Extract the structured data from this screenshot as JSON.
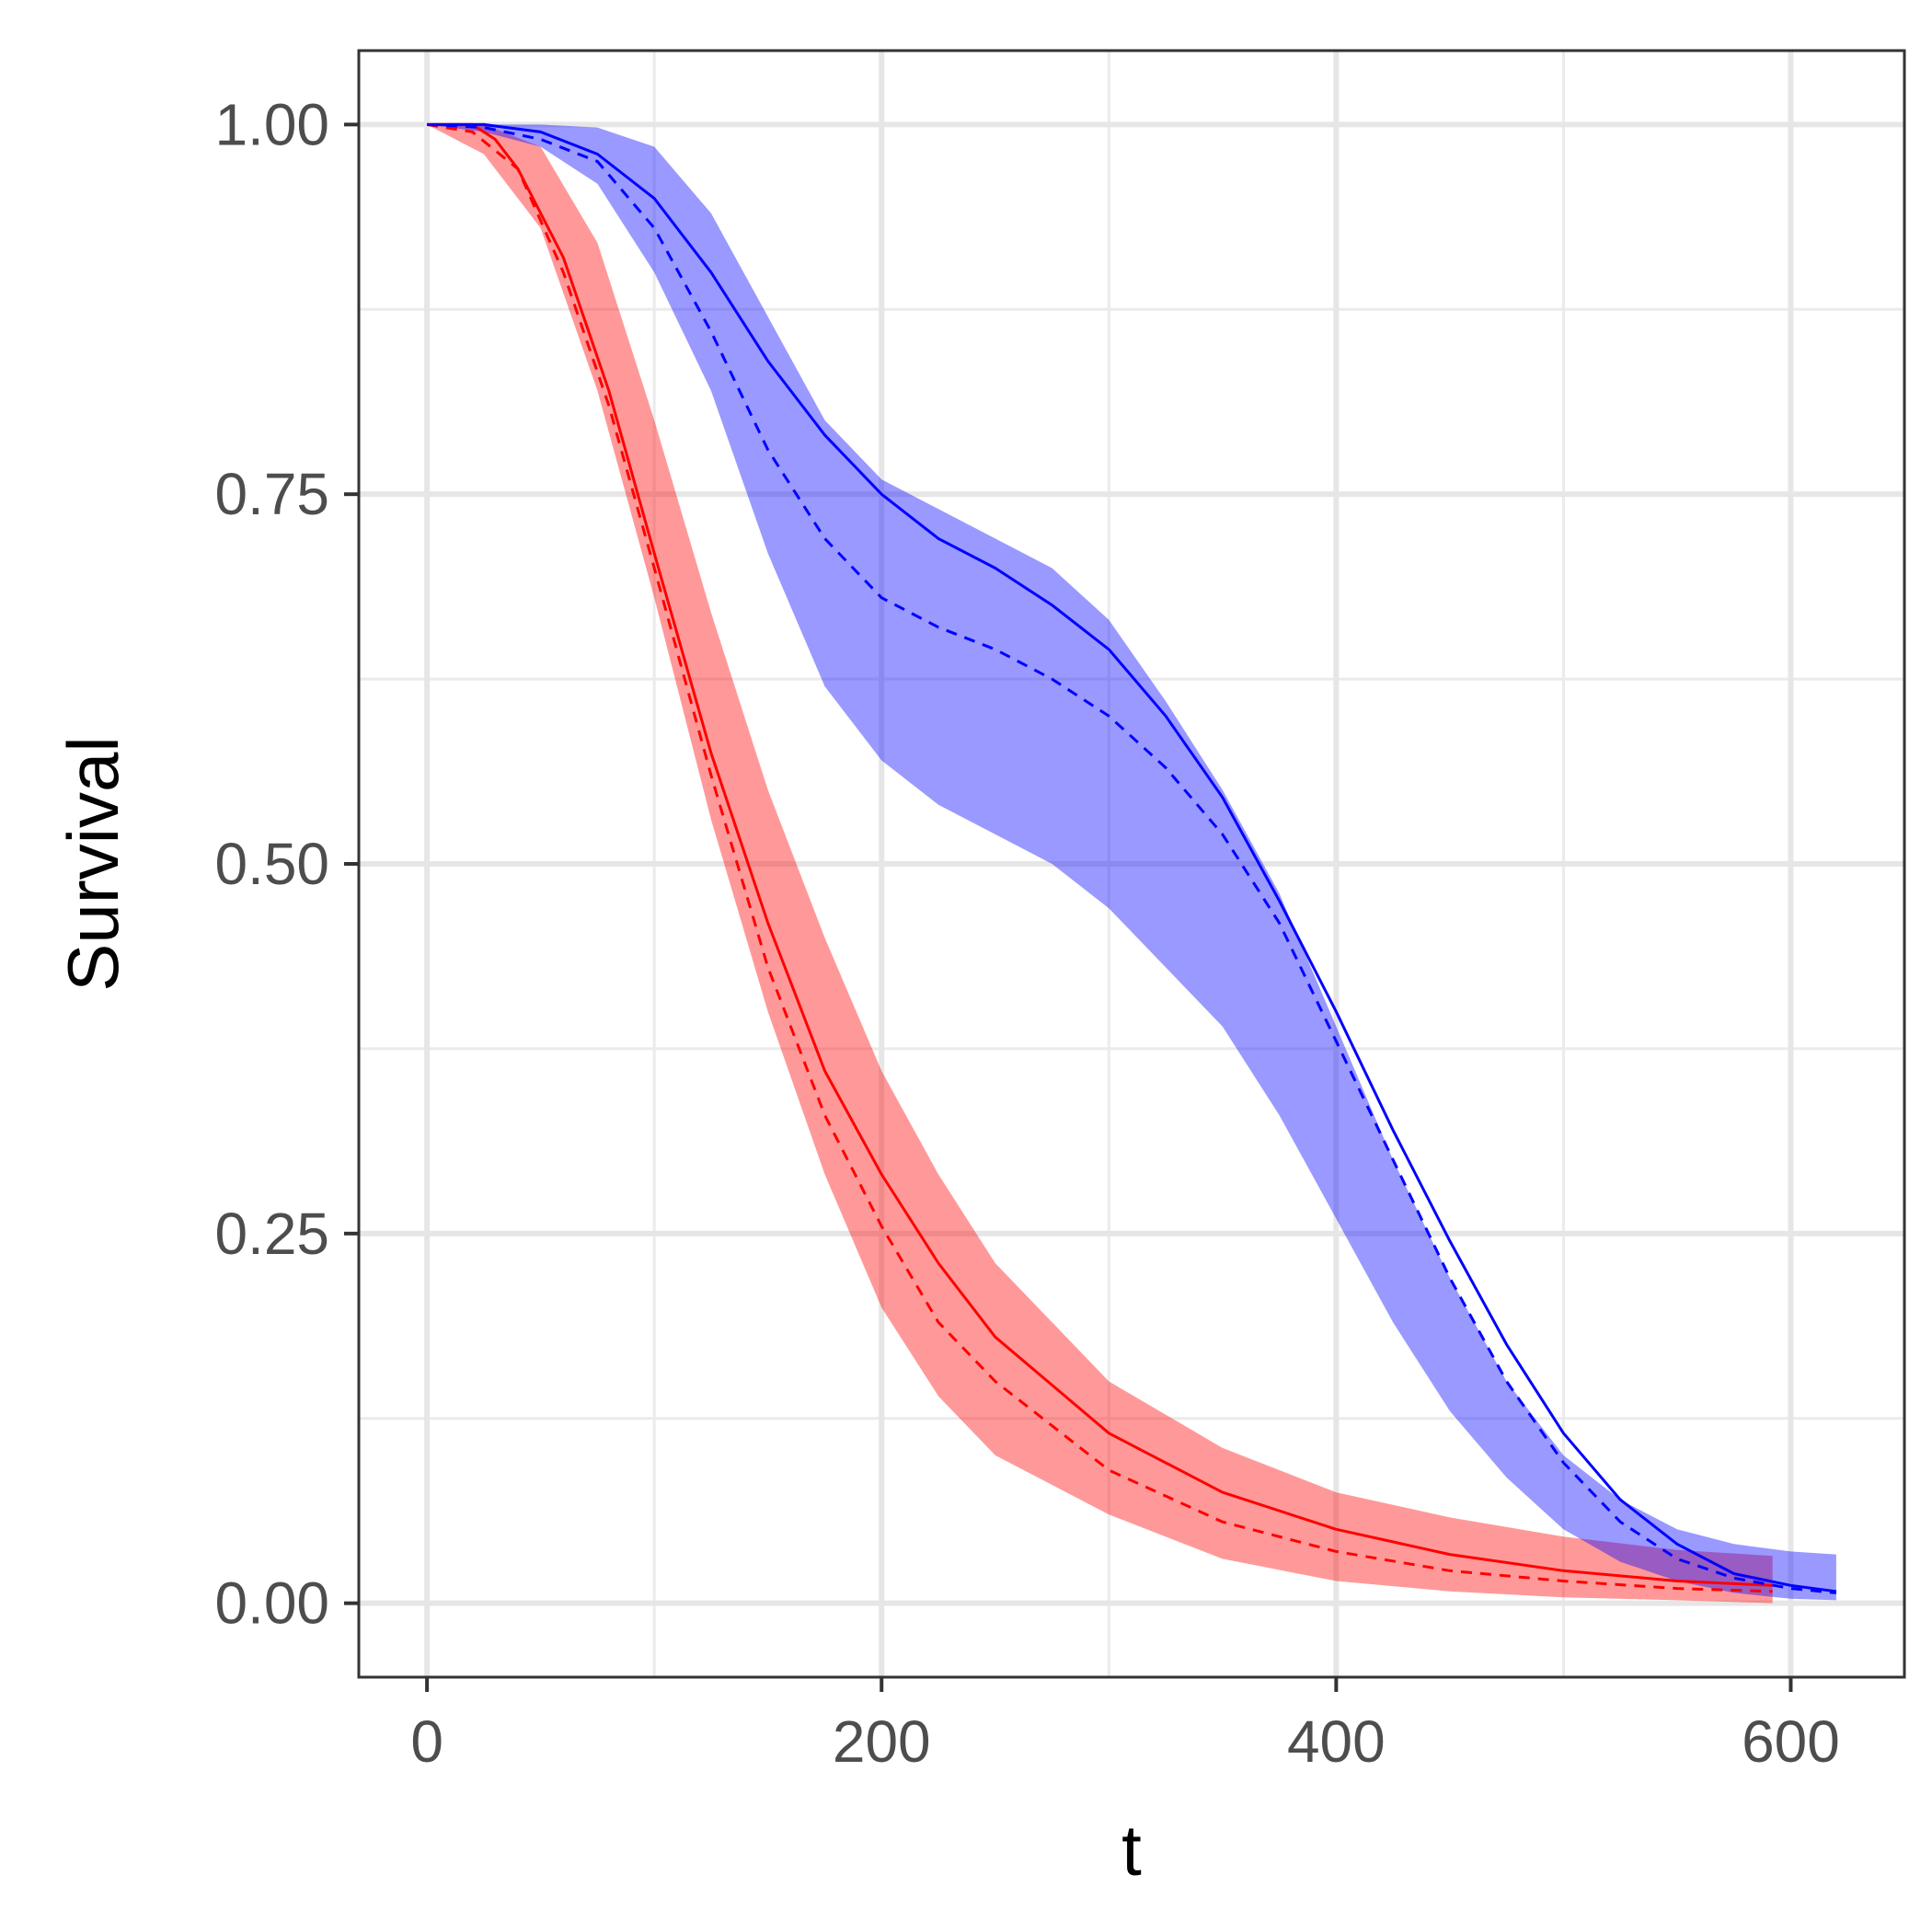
{
  "chart_data": {
    "type": "line",
    "title": "",
    "xlabel": "t",
    "ylabel": "Survival",
    "xlim": [
      -30,
      650
    ],
    "ylim": [
      -0.05,
      1.05
    ],
    "x_ticks": [
      0,
      200,
      400,
      600
    ],
    "x_tick_labels": [
      "0",
      "200",
      "400",
      "600"
    ],
    "y_ticks": [
      0,
      0.25,
      0.5,
      0.75,
      1.0
    ],
    "y_tick_labels": [
      "0.00",
      "0.25",
      "0.50",
      "0.75",
      "1.00"
    ],
    "grid": true,
    "legend": "none",
    "series": [
      {
        "color": "#ff0000",
        "linestyle": "solid",
        "x": [
          0,
          20,
          30,
          40,
          60,
          80,
          100,
          125,
          150,
          175,
          200,
          225,
          250,
          300,
          350,
          400,
          450,
          500,
          550,
          592
        ],
        "y": [
          1.0,
          1.0,
          0.99,
          0.97,
          0.91,
          0.82,
          0.71,
          0.575,
          0.46,
          0.36,
          0.29,
          0.23,
          0.18,
          0.115,
          0.075,
          0.05,
          0.033,
          0.022,
          0.015,
          0.012
        ]
      },
      {
        "color": "#ff0000",
        "linestyle": "dashed",
        "x": [
          0,
          20,
          40,
          60,
          80,
          100,
          125,
          150,
          175,
          200,
          225,
          250,
          300,
          350,
          400,
          450,
          500,
          550,
          592
        ],
        "y": [
          1.0,
          0.995,
          0.97,
          0.9,
          0.81,
          0.7,
          0.56,
          0.43,
          0.33,
          0.255,
          0.19,
          0.15,
          0.09,
          0.055,
          0.035,
          0.022,
          0.015,
          0.01,
          0.008
        ]
      },
      {
        "color": "#0000ff",
        "linestyle": "solid",
        "x": [
          0,
          25,
          50,
          75,
          100,
          125,
          150,
          175,
          200,
          225,
          250,
          275,
          300,
          325,
          350,
          375,
          400,
          425,
          450,
          475,
          500,
          525,
          550,
          575,
          600,
          620
        ],
        "y": [
          1.0,
          1.0,
          0.995,
          0.98,
          0.95,
          0.9,
          0.84,
          0.79,
          0.75,
          0.72,
          0.7,
          0.675,
          0.645,
          0.6,
          0.545,
          0.475,
          0.4,
          0.32,
          0.245,
          0.175,
          0.115,
          0.07,
          0.04,
          0.02,
          0.012,
          0.008
        ]
      },
      {
        "color": "#0000ff",
        "linestyle": "dashed",
        "x": [
          0,
          25,
          50,
          75,
          100,
          125,
          150,
          175,
          200,
          225,
          250,
          275,
          300,
          325,
          350,
          375,
          400,
          425,
          450,
          475,
          500,
          525,
          550,
          575,
          600,
          620
        ],
        "y": [
          1.0,
          0.998,
          0.99,
          0.975,
          0.93,
          0.86,
          0.78,
          0.72,
          0.68,
          0.66,
          0.645,
          0.625,
          0.6,
          0.565,
          0.52,
          0.46,
          0.38,
          0.3,
          0.22,
          0.15,
          0.095,
          0.055,
          0.03,
          0.017,
          0.01,
          0.007
        ]
      }
    ],
    "bands": [
      {
        "color": "#ff0000",
        "opacity": 0.4,
        "x": [
          0,
          25,
          50,
          75,
          100,
          125,
          150,
          175,
          200,
          225,
          250,
          300,
          350,
          400,
          450,
          500,
          550,
          592
        ],
        "lower": [
          1.0,
          0.98,
          0.93,
          0.82,
          0.68,
          0.53,
          0.4,
          0.29,
          0.2,
          0.14,
          0.1,
          0.06,
          0.03,
          0.015,
          0.008,
          0.004,
          0.002,
          0.0
        ],
        "upper": [
          1.0,
          1.0,
          0.985,
          0.92,
          0.8,
          0.67,
          0.55,
          0.45,
          0.36,
          0.29,
          0.23,
          0.15,
          0.105,
          0.075,
          0.058,
          0.045,
          0.036,
          0.032
        ]
      },
      {
        "color": "#0000ff",
        "opacity": 0.4,
        "x": [
          0,
          25,
          50,
          75,
          100,
          125,
          150,
          175,
          200,
          225,
          250,
          275,
          300,
          325,
          350,
          375,
          400,
          425,
          450,
          475,
          500,
          525,
          550,
          575,
          600,
          620
        ],
        "lower": [
          1.0,
          0.995,
          0.985,
          0.96,
          0.9,
          0.82,
          0.71,
          0.62,
          0.57,
          0.54,
          0.52,
          0.5,
          0.47,
          0.43,
          0.39,
          0.33,
          0.26,
          0.19,
          0.13,
          0.085,
          0.05,
          0.028,
          0.015,
          0.007,
          0.003,
          0.002
        ],
        "upper": [
          1.0,
          1.0,
          1.0,
          0.998,
          0.985,
          0.94,
          0.87,
          0.8,
          0.76,
          0.74,
          0.72,
          0.7,
          0.665,
          0.61,
          0.55,
          0.48,
          0.39,
          0.3,
          0.22,
          0.15,
          0.1,
          0.07,
          0.05,
          0.04,
          0.035,
          0.033
        ]
      }
    ]
  }
}
